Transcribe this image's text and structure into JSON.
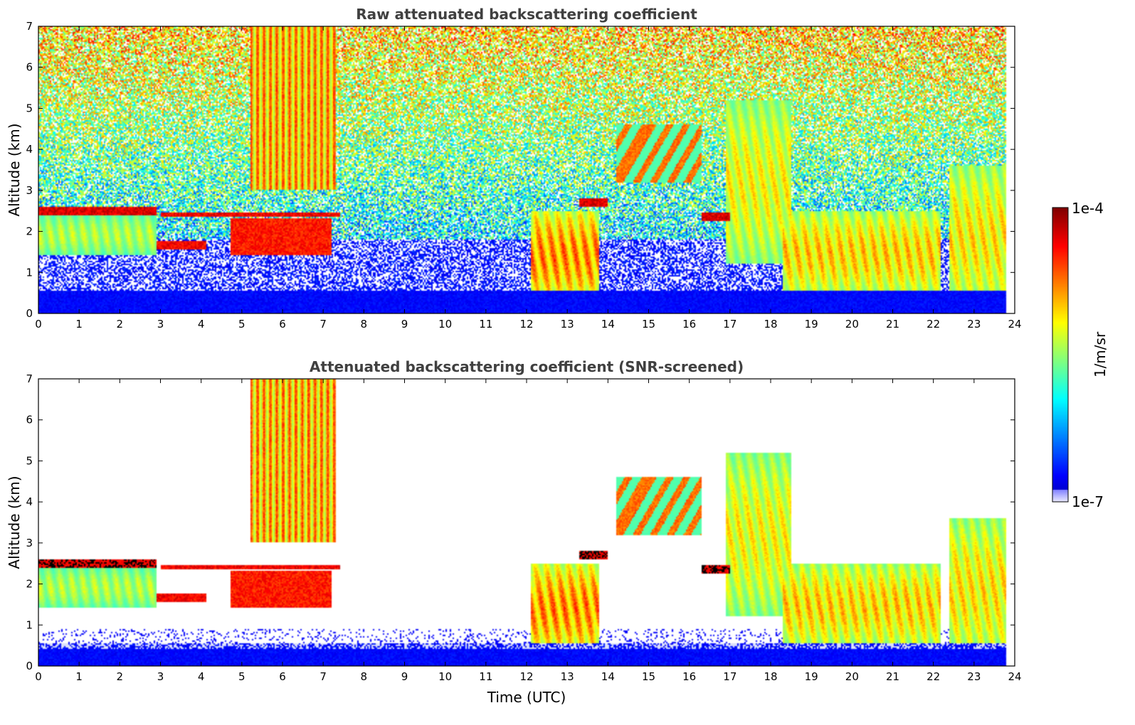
{
  "chart_data": [
    {
      "type": "heatmap",
      "title": "Raw attenuated backscattering coefficient",
      "xlabel": "",
      "ylabel": "Altitude (km)",
      "xlim": [
        0,
        24
      ],
      "ylim": [
        0,
        7
      ],
      "xticks": [
        "0",
        "1",
        "2",
        "3",
        "4",
        "5",
        "6",
        "7",
        "8",
        "9",
        "10",
        "11",
        "12",
        "13",
        "14",
        "15",
        "16",
        "17",
        "18",
        "19",
        "20",
        "21",
        "22",
        "23",
        "24"
      ],
      "yticks": [
        "0",
        "1",
        "2",
        "3",
        "4",
        "5",
        "6",
        "7"
      ],
      "features": [
        {
          "kind": "cloud_layer",
          "time": [
            0.0,
            2.9
          ],
          "altitude": [
            2.4,
            2.6
          ],
          "level": 1.0
        },
        {
          "kind": "fall_streaks",
          "time": [
            0.0,
            2.9
          ],
          "altitude": [
            1.4,
            2.4
          ],
          "level": 0.45
        },
        {
          "kind": "cloud_layer",
          "time": [
            2.9,
            4.1
          ],
          "altitude": [
            1.55,
            1.75
          ],
          "level": 0.95
        },
        {
          "kind": "cloud_layer",
          "time": [
            4.7,
            7.2
          ],
          "altitude": [
            1.4,
            2.3
          ],
          "level": 0.9
        },
        {
          "kind": "thin_layer",
          "time": [
            3.0,
            7.4
          ],
          "altitude": [
            2.35,
            2.45
          ],
          "level": 0.95
        },
        {
          "kind": "cirrus",
          "time": [
            5.2,
            7.3
          ],
          "altitude": [
            3.0,
            7.0
          ],
          "level": 0.85
        },
        {
          "kind": "cloud",
          "time": [
            12.1,
            13.8
          ],
          "altitude": [
            0.3,
            2.5
          ],
          "level": 0.85
        },
        {
          "kind": "cloud_layer",
          "time": [
            13.3,
            14.0
          ],
          "altitude": [
            2.6,
            2.8
          ],
          "level": 1.0
        },
        {
          "kind": "virga",
          "time": [
            14.2,
            16.3
          ],
          "altitude": [
            3.2,
            4.6
          ],
          "level": 0.75
        },
        {
          "kind": "cloud_layer",
          "time": [
            16.3,
            17.0
          ],
          "altitude": [
            2.25,
            2.45
          ],
          "level": 1.0
        },
        {
          "kind": "cloud",
          "time": [
            16.9,
            18.5
          ],
          "altitude": [
            1.2,
            5.2
          ],
          "level": 0.6
        },
        {
          "kind": "precipitating_cloud",
          "time": [
            18.3,
            22.2
          ],
          "altitude": [
            0.4,
            2.5
          ],
          "level": 0.7
        },
        {
          "kind": "precipitating_cloud",
          "time": [
            22.4,
            23.8
          ],
          "altitude": [
            0.1,
            3.6
          ],
          "level": 0.65
        }
      ]
    },
    {
      "type": "heatmap",
      "title": "Attenuated backscattering coefficient (SNR-screened)",
      "xlabel": "Time (UTC)",
      "ylabel": "Altitude (km)",
      "xlim": [
        0,
        24
      ],
      "ylim": [
        0,
        7
      ],
      "xticks": [
        "0",
        "1",
        "2",
        "3",
        "4",
        "5",
        "6",
        "7",
        "8",
        "9",
        "10",
        "11",
        "12",
        "13",
        "14",
        "15",
        "16",
        "17",
        "18",
        "19",
        "20",
        "21",
        "22",
        "23",
        "24"
      ],
      "yticks": [
        "0",
        "1",
        "2",
        "3",
        "4",
        "5",
        "6",
        "7"
      ],
      "screening": "values below SNR threshold shown as white"
    }
  ],
  "colorbar": {
    "label": "1/m/sr",
    "max_label": "1e-4",
    "min_label": "1e-7",
    "colormap": "jet",
    "scale": "log"
  }
}
